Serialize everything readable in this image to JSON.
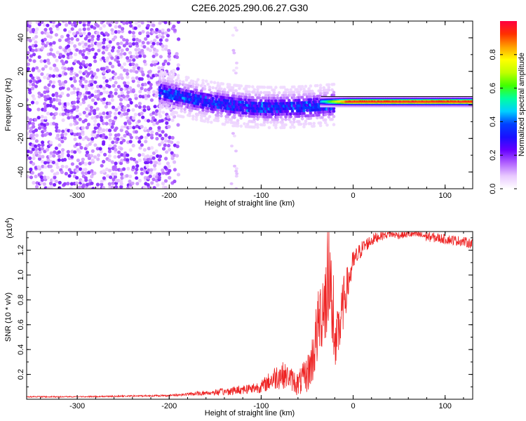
{
  "figure_title": "C2E6.2025.290.06.27.G30",
  "chart_data": [
    {
      "type": "heatmap",
      "id": "spectrogram",
      "title": "C2E6.2025.290.06.27.G30",
      "xlabel": "Height of straight line (km)",
      "ylabel": "Frequency (Hz)",
      "xlim": [
        -355,
        130
      ],
      "ylim": [
        -50,
        50
      ],
      "x_ticks": [
        -300,
        -200,
        -100,
        0,
        100
      ],
      "x_tick_labels": [
        "-300",
        "-200",
        "-100",
        "0",
        "100"
      ],
      "y_ticks": [
        -40,
        -20,
        0,
        20,
        40
      ],
      "y_tick_labels": [
        "-40",
        "-20",
        "0",
        "20",
        "40"
      ],
      "features": [
        {
          "name": "noise region",
          "x_range": [
            -355,
            -200
          ],
          "freq_range": [
            -50,
            50
          ],
          "amplitude": "low-scattered"
        },
        {
          "name": "onset band",
          "x_range": [
            -210,
            -20
          ],
          "freq_center": [
            8,
            0
          ],
          "amplitude": "medium"
        },
        {
          "name": "narrow tone",
          "x_range": [
            -35,
            130
          ],
          "freq_center": 2,
          "amplitude": "high"
        }
      ],
      "colorbar": {
        "label": "Normalized spectral amplitude",
        "range": [
          0,
          1
        ],
        "ticks": [
          0.0,
          0.2,
          0.4,
          0.6,
          0.8
        ],
        "tick_labels": [
          "0.0",
          "0.2",
          "0.4",
          "0.6",
          "0.8"
        ],
        "colormap_stops": [
          "#ffffff",
          "#e8c8ff",
          "#b060ff",
          "#6600ff",
          "#1a10ff",
          "#0040ff",
          "#00d0ff",
          "#00ffa0",
          "#40ff00",
          "#c0ff00",
          "#ffff00",
          "#ffa000",
          "#ff3000",
          "#ff0040"
        ]
      }
    },
    {
      "type": "line",
      "id": "snr",
      "xlabel": "Height of straight line (km)",
      "ylabel": "SNR (10 * v/v)",
      "y_multiplier_label": "(x10^4)",
      "y_multiplier_base": "(x10",
      "y_multiplier_exp": "4",
      "y_multiplier_close": ")",
      "xlim": [
        -355,
        130
      ],
      "ylim": [
        0,
        1.35
      ],
      "x_ticks": [
        -300,
        -200,
        -100,
        0,
        100
      ],
      "x_tick_labels": [
        "-300",
        "-200",
        "-100",
        "0",
        "100"
      ],
      "y_ticks": [
        0.2,
        0.4,
        0.6,
        0.8,
        1.0,
        1.2
      ],
      "y_tick_labels": [
        "0.2",
        "0.4",
        "0.6",
        "0.8",
        "1.0",
        "1.2"
      ],
      "line_color": "#ee2222",
      "series": [
        {
          "name": "SNR",
          "x": [
            -355,
            -300,
            -250,
            -200,
            -180,
            -160,
            -140,
            -120,
            -100,
            -90,
            -80,
            -70,
            -60,
            -50,
            -45,
            -40,
            -35,
            -30,
            -25,
            -20,
            -15,
            -10,
            -5,
            0,
            10,
            20,
            30,
            40,
            50,
            60,
            70,
            80,
            90,
            100,
            110,
            120,
            130
          ],
          "y": [
            0.02,
            0.02,
            0.025,
            0.03,
            0.04,
            0.05,
            0.06,
            0.08,
            0.1,
            0.15,
            0.2,
            0.18,
            0.12,
            0.2,
            0.3,
            0.5,
            0.7,
            0.85,
            0.95,
            0.4,
            0.55,
            0.8,
            0.95,
            1.1,
            1.22,
            1.28,
            1.32,
            1.33,
            1.32,
            1.33,
            1.33,
            1.31,
            1.3,
            1.29,
            1.28,
            1.27,
            1.25
          ],
          "amplitude": [
            0.005,
            0.005,
            0.006,
            0.008,
            0.012,
            0.02,
            0.03,
            0.04,
            0.05,
            0.08,
            0.12,
            0.09,
            0.1,
            0.15,
            0.2,
            0.28,
            0.32,
            0.38,
            0.35,
            0.2,
            0.25,
            0.2,
            0.15,
            0.1,
            0.06,
            0.05,
            0.04,
            0.03,
            0.03,
            0.03,
            0.04,
            0.04,
            0.04,
            0.04,
            0.04,
            0.04,
            0.04
          ]
        }
      ]
    }
  ]
}
